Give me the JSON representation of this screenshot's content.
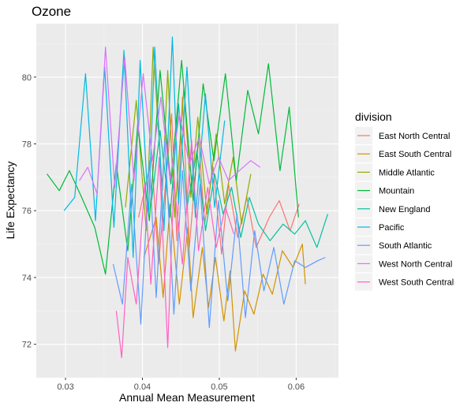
{
  "chart_data": {
    "type": "line",
    "title": "Ozone",
    "xlabel": "Annual Mean Measurement",
    "ylabel": "Life Expectancy",
    "xlim": [
      0.0262,
      0.0655
    ],
    "ylim": [
      71.0,
      81.6
    ],
    "x_ticks": [
      0.03,
      0.04,
      0.05,
      0.06
    ],
    "x_tick_labels": [
      "0.03",
      "0.04",
      "0.05",
      "0.06"
    ],
    "y_ticks": [
      72,
      74,
      76,
      78,
      80
    ],
    "y_tick_labels": [
      "72",
      "74",
      "76",
      "78",
      "80"
    ],
    "grid": true,
    "legend": {
      "title": "division",
      "position": "right"
    },
    "series": [
      {
        "name": "East North Central",
        "color": "#F8766D",
        "x": [
          0.0395,
          0.0412,
          0.0421,
          0.0438,
          0.0445,
          0.0452,
          0.0461,
          0.0473,
          0.0481,
          0.0492,
          0.0503,
          0.0512,
          0.0524,
          0.0536,
          0.0548,
          0.0565,
          0.0578,
          0.0592,
          0.0604
        ],
        "y": [
          75.8,
          77.6,
          74.4,
          78.9,
          75.1,
          79.4,
          74.9,
          78.2,
          75.6,
          77.3,
          74.7,
          76.8,
          75.2,
          76.4,
          74.9,
          75.8,
          76.3,
          75.4,
          76.2
        ]
      },
      {
        "name": "East South Central",
        "color": "#D39200",
        "x": [
          0.0402,
          0.0418,
          0.0427,
          0.0436,
          0.0448,
          0.0459,
          0.0466,
          0.0478,
          0.0486,
          0.0495,
          0.0506,
          0.0514,
          0.0521,
          0.0533,
          0.0545,
          0.0557,
          0.0569,
          0.0582,
          0.0596,
          0.0608,
          0.0612
        ],
        "y": [
          74.6,
          75.8,
          73.4,
          76.2,
          73.2,
          75.5,
          72.8,
          74.9,
          73.1,
          74.6,
          72.7,
          74.2,
          71.8,
          73.6,
          72.9,
          74.1,
          73.5,
          74.8,
          74.3,
          75.0,
          73.8
        ]
      },
      {
        "name": "Middle Atlantic",
        "color": "#93AA00",
        "x": [
          0.0378,
          0.0392,
          0.0405,
          0.0414,
          0.0426,
          0.0433,
          0.0442,
          0.0454,
          0.0463,
          0.0472,
          0.0484,
          0.0496,
          0.0507,
          0.0518,
          0.0529,
          0.0541
        ],
        "y": [
          76.1,
          79.3,
          75.4,
          80.9,
          76.6,
          80.2,
          75.8,
          79.7,
          76.4,
          78.8,
          75.9,
          78.3,
          76.2,
          77.6,
          75.6,
          77.1
        ]
      },
      {
        "name": "Mountain",
        "color": "#00BA38",
        "x": [
          0.0276,
          0.0292,
          0.0305,
          0.0321,
          0.0338,
          0.0352,
          0.0366,
          0.0381,
          0.0394,
          0.0409,
          0.0423,
          0.0437,
          0.0451,
          0.0466,
          0.0479,
          0.0493,
          0.0508,
          0.0522,
          0.0537,
          0.0551,
          0.0564,
          0.0579,
          0.0591,
          0.0603
        ],
        "y": [
          77.1,
          76.6,
          77.2,
          76.4,
          75.5,
          74.1,
          77.4,
          74.8,
          78.6,
          75.7,
          80.2,
          76.8,
          80.5,
          76.3,
          79.8,
          77.5,
          80.1,
          76.9,
          79.6,
          78.3,
          80.4,
          77.2,
          79.1,
          75.8
        ]
      },
      {
        "name": "New England",
        "color": "#00C19F",
        "x": [
          0.0412,
          0.0423,
          0.0436,
          0.0447,
          0.0458,
          0.0471,
          0.0482,
          0.0494,
          0.0505,
          0.0516,
          0.0528,
          0.0539,
          0.0551,
          0.0566,
          0.0583,
          0.0598,
          0.0612,
          0.0627,
          0.0641
        ],
        "y": [
          76.3,
          78.4,
          75.8,
          79.2,
          76.1,
          77.8,
          75.4,
          77.1,
          75.9,
          76.7,
          75.2,
          76.4,
          75.6,
          75.1,
          75.6,
          75.3,
          75.7,
          74.9,
          75.9
        ]
      },
      {
        "name": "Pacific",
        "color": "#00B9E3",
        "x": [
          0.0298,
          0.0312,
          0.0326,
          0.0339,
          0.0351,
          0.0363,
          0.0376,
          0.0388,
          0.0397,
          0.0408,
          0.0416,
          0.0428,
          0.0439,
          0.0447,
          0.0458,
          0.0469,
          0.0482,
          0.0494,
          0.0507
        ],
        "y": [
          76.0,
          76.4,
          80.1,
          75.7,
          80.3,
          75.5,
          80.8,
          74.6,
          80.5,
          75.9,
          80.9,
          75.4,
          81.2,
          76.2,
          80.3,
          75.8,
          79.5,
          76.1,
          78.7
        ]
      },
      {
        "name": "South Atlantic",
        "color": "#619CFF",
        "x": [
          0.0362,
          0.0374,
          0.0386,
          0.0398,
          0.0409,
          0.0418,
          0.0429,
          0.0441,
          0.0452,
          0.0463,
          0.0475,
          0.0487,
          0.0499,
          0.0511,
          0.0523,
          0.0534,
          0.0546,
          0.0558,
          0.0571,
          0.0584,
          0.0598,
          0.0612,
          0.0628,
          0.0638
        ],
        "y": [
          74.4,
          73.2,
          76.8,
          72.6,
          77.5,
          73.4,
          78.1,
          72.9,
          77.2,
          73.6,
          76.8,
          72.5,
          76.3,
          73.3,
          75.9,
          72.8,
          75.4,
          73.6,
          74.9,
          73.2,
          74.5,
          74.3,
          74.5,
          74.6
        ]
      },
      {
        "name": "West North Central",
        "color": "#DB72FB",
        "x": [
          0.0318,
          0.0329,
          0.0341,
          0.0352,
          0.0364,
          0.0377,
          0.0389,
          0.0401,
          0.0413,
          0.0424,
          0.0436,
          0.0448,
          0.0461,
          0.0474,
          0.0487,
          0.0499,
          0.0512,
          0.0526,
          0.0541,
          0.0553
        ],
        "y": [
          76.9,
          77.3,
          76.5,
          80.9,
          76.7,
          80.6,
          76.9,
          80.1,
          77.5,
          79.4,
          76.9,
          78.9,
          77.4,
          78.2,
          76.8,
          77.6,
          76.9,
          77.2,
          77.5,
          77.3
        ]
      },
      {
        "name": "West South Central",
        "color": "#FF61C3",
        "x": [
          0.0366,
          0.0373,
          0.0381,
          0.0392,
          0.0403,
          0.0411,
          0.0422,
          0.0433,
          0.0441,
          0.0452,
          0.0464,
          0.0473,
          0.0485,
          0.0496,
          0.0508,
          0.0519
        ],
        "y": [
          73.0,
          71.6,
          74.6,
          73.2,
          76.8,
          73.8,
          77.6,
          71.9,
          76.9,
          74.4,
          78.1,
          74.8,
          76.7,
          74.9,
          76.1,
          75.3
        ]
      }
    ]
  }
}
